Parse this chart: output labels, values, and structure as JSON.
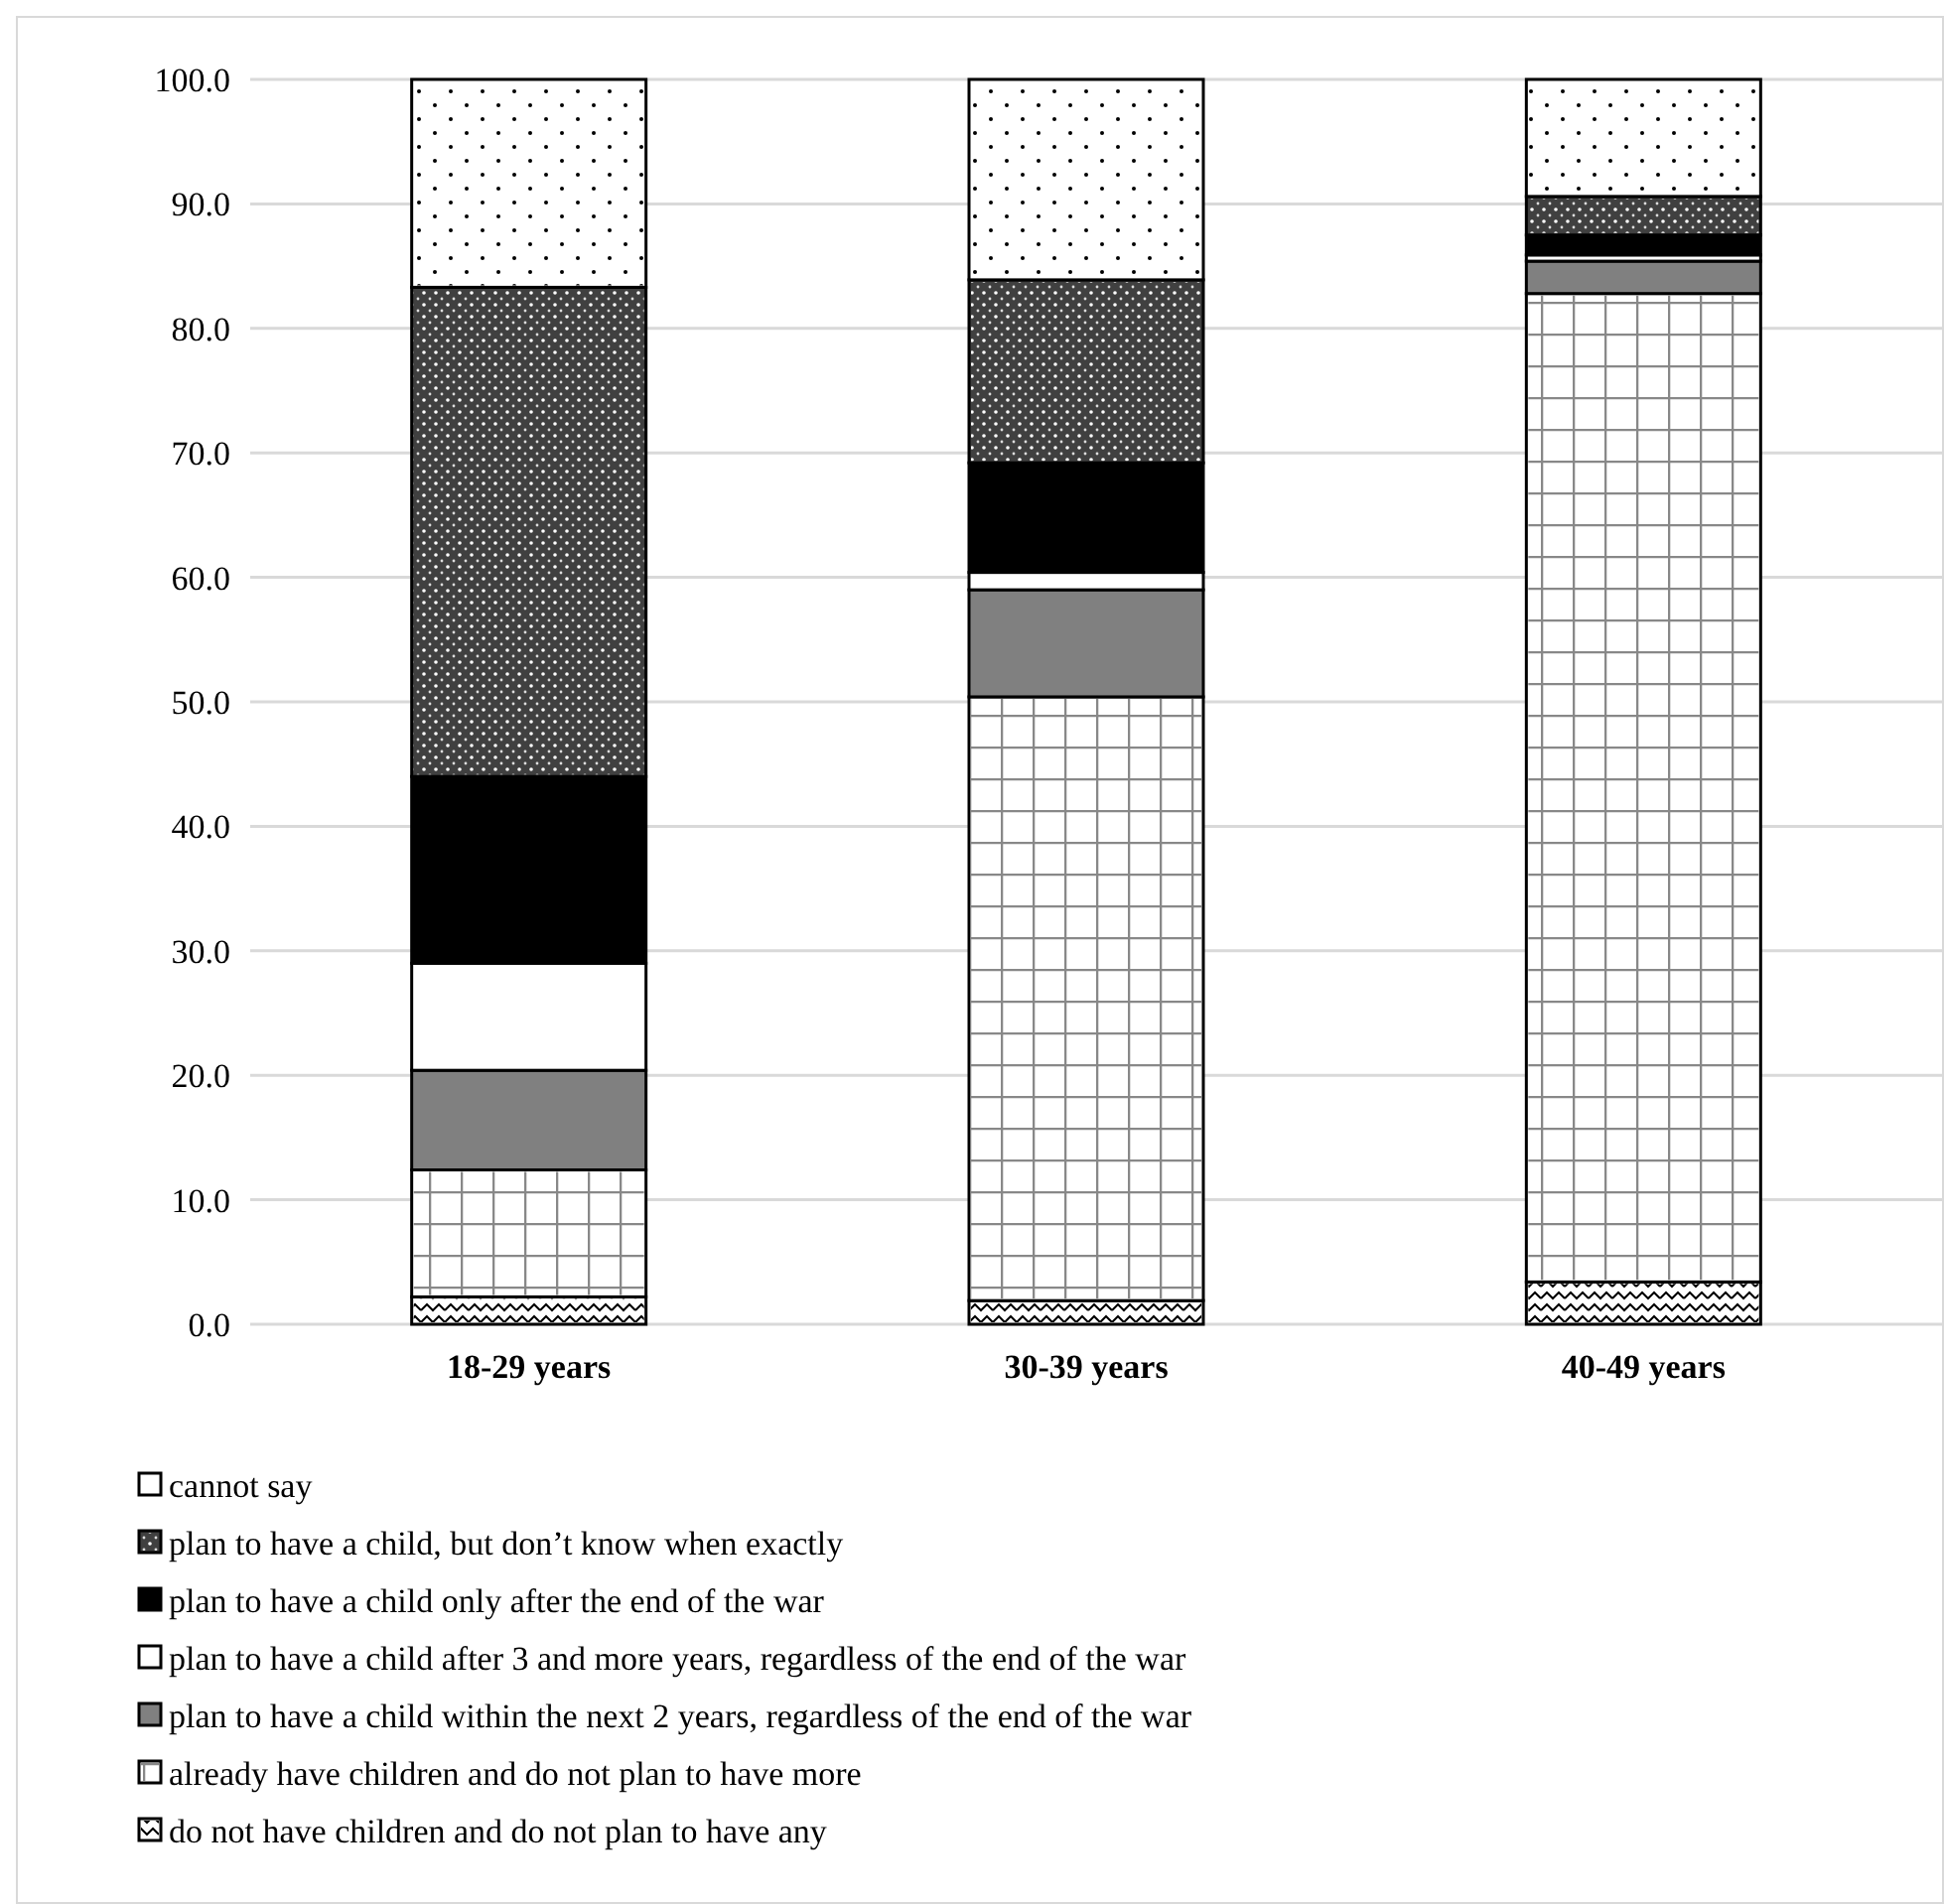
{
  "chart_data": {
    "type": "bar",
    "stacked": true,
    "categories": [
      "18-29 years",
      "30-39 years",
      "40-49 years"
    ],
    "series": [
      {
        "name": "do not have children and do not plan to have any",
        "color": "#ffffff",
        "values": [
          2.2,
          1.9,
          3.4
        ]
      },
      {
        "name": "already have children and do not plan to have more",
        "color": "#ffffff",
        "values": [
          10.2,
          48.5,
          79.4
        ]
      },
      {
        "name": "plan to have a child within the next 2 years, regardless of the end of the war",
        "color": "#808080",
        "values": [
          8.0,
          8.6,
          2.6
        ]
      },
      {
        "name": "plan to have a child after 3 and more years, regardless of the end of the war",
        "color": "#ffffff",
        "values": [
          8.6,
          1.4,
          0.5
        ]
      },
      {
        "name": "plan to have a child only after the end of the war",
        "color": "#000000",
        "values": [
          15.0,
          8.8,
          1.6
        ]
      },
      {
        "name": "plan to have a child, but don’t know when exactly",
        "color": "#404040",
        "values": [
          39.3,
          14.7,
          3.1
        ]
      },
      {
        "name": "cannot say",
        "color": "#ffffff",
        "values": [
          16.7,
          16.1,
          9.4
        ]
      }
    ],
    "ylim": [
      0,
      100
    ],
    "yticks": [
      {
        "value": 0,
        "label": "0.0"
      },
      {
        "value": 10,
        "label": "10.0"
      },
      {
        "value": 20,
        "label": "20.0"
      },
      {
        "value": 30,
        "label": "30.0"
      },
      {
        "value": 40,
        "label": "40.0"
      },
      {
        "value": 50,
        "label": "50.0"
      },
      {
        "value": 60,
        "label": "60.0"
      },
      {
        "value": 70,
        "label": "70.0"
      },
      {
        "value": 80,
        "label": "80.0"
      },
      {
        "value": 90,
        "label": "90.0"
      },
      {
        "value": 100,
        "label": "100.0"
      }
    ],
    "grid": "y",
    "legend": "bottom"
  }
}
